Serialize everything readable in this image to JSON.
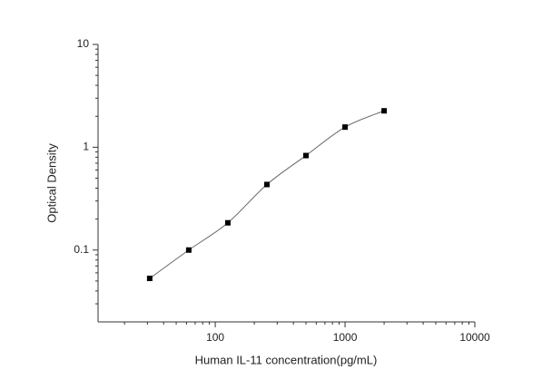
{
  "chart_data": {
    "type": "scatter",
    "xlabel": "Human IL-11 concentration(pg/mL)",
    "ylabel": "Optical Density",
    "xscale": "log",
    "yscale": "log",
    "xlim": [
      12.5,
      10000
    ],
    "xticks": [
      100,
      1000,
      10000
    ],
    "ylim": [
      0.02,
      10
    ],
    "yticks": [
      0.1,
      1,
      10
    ],
    "fit_curve": true,
    "series": [
      {
        "color": "#000000",
        "x": [
          31.25,
          62.5,
          125,
          250,
          500,
          1000,
          2000
        ],
        "values": [
          0.053,
          0.1,
          0.184,
          0.434,
          0.83,
          1.57,
          2.26
        ]
      }
    ]
  }
}
